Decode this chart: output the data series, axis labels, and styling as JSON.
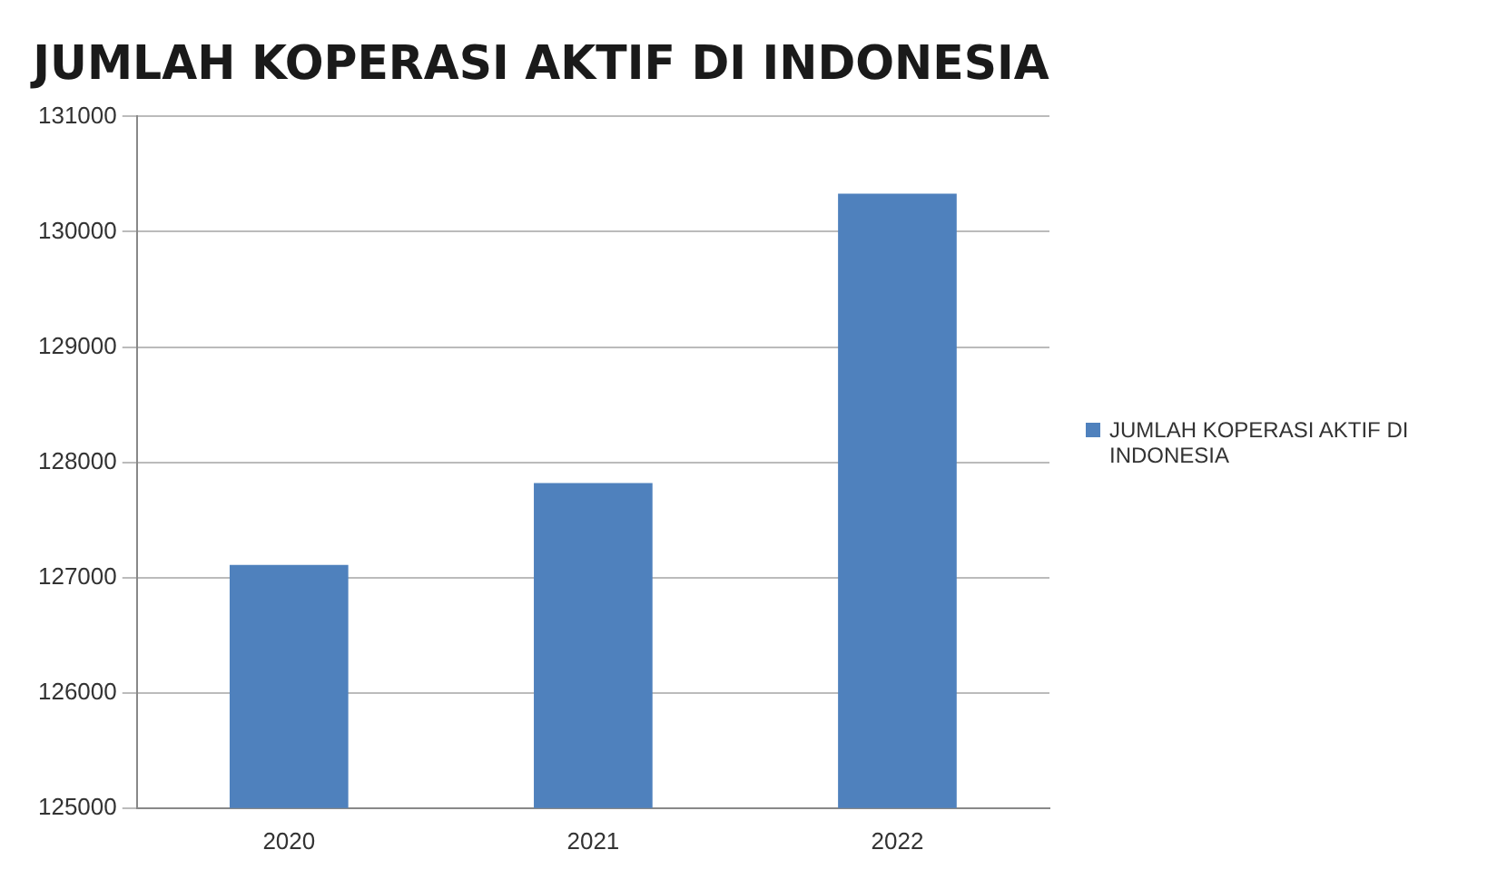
{
  "chart_data": {
    "type": "bar",
    "title": "JUMLAH KOPERASI AKTIF DI INDONESIA",
    "categories": [
      "2020",
      "2021",
      "2022"
    ],
    "series": [
      {
        "name": "JUMLAH KOPERASI AKTIF DI INDONESIA",
        "color": "#4f81bd",
        "values": [
          127110,
          127820,
          130330
        ]
      }
    ],
    "ylim": [
      125000,
      131000
    ],
    "yticks": [
      125000,
      126000,
      127000,
      128000,
      129000,
      130000,
      131000
    ],
    "grid": "y",
    "legend": "right"
  }
}
